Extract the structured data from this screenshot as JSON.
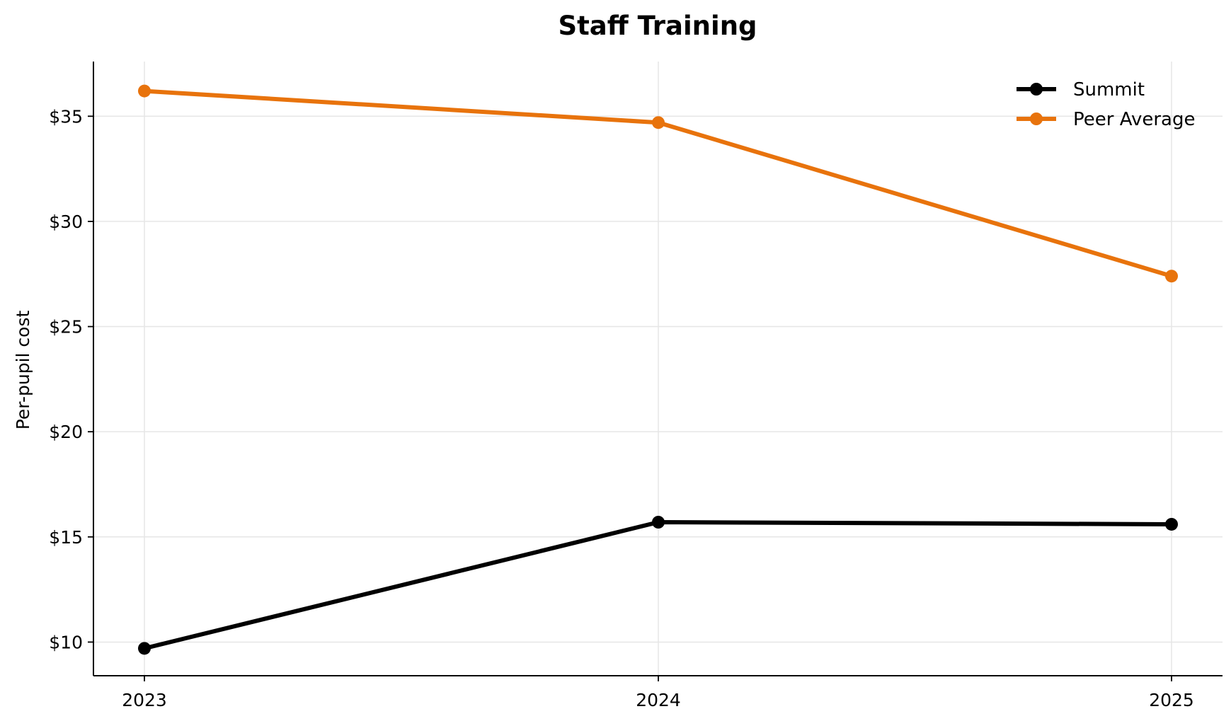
{
  "chart_data": {
    "type": "line",
    "title": "Staff Training",
    "xlabel": "",
    "ylabel": "Per-pupil cost",
    "x": [
      "2023",
      "2024",
      "2025"
    ],
    "yticks": [
      10,
      15,
      20,
      25,
      30,
      35
    ],
    "ytick_labels": [
      "$10",
      "$15",
      "$20",
      "$25",
      "$30",
      "$35"
    ],
    "ylim": [
      8.4,
      37.6
    ],
    "grid": true,
    "legend_position": "top-right",
    "series": [
      {
        "name": "Summit",
        "color": "#000000",
        "values": [
          9.7,
          15.7,
          15.6
        ]
      },
      {
        "name": "Peer Average",
        "color": "#e8730c",
        "values": [
          36.2,
          34.7,
          27.4
        ]
      }
    ]
  }
}
